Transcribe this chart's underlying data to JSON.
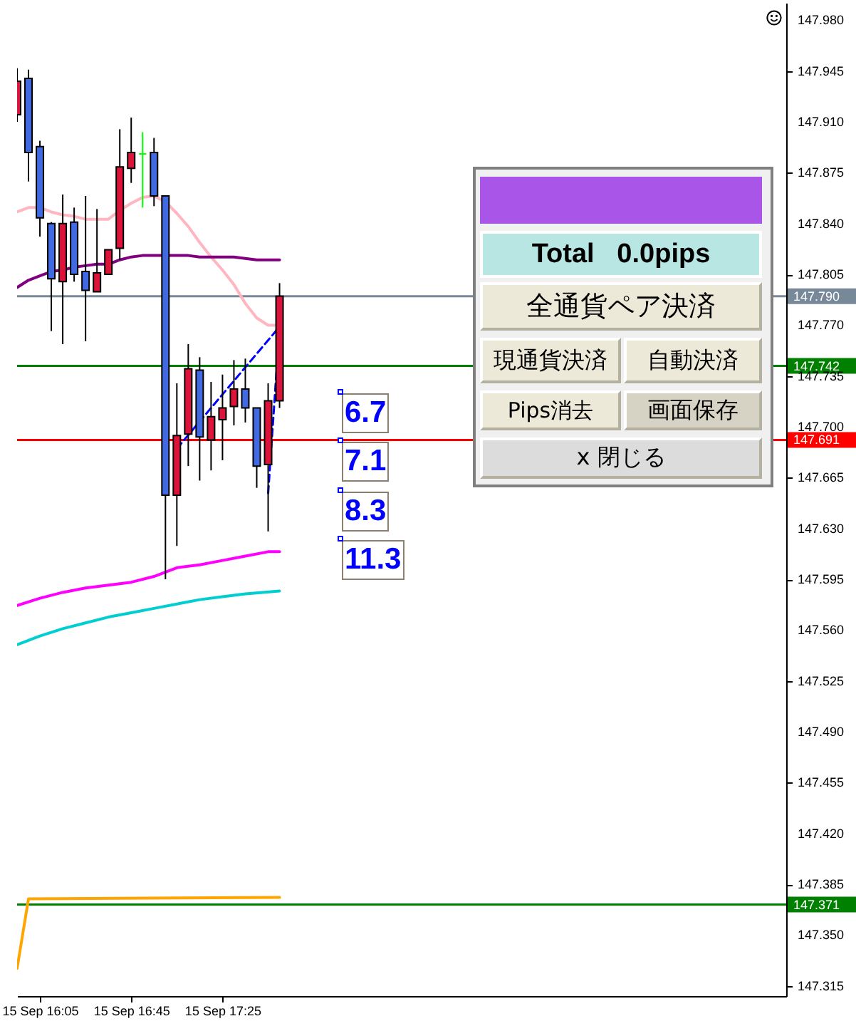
{
  "chart_data": {
    "type": "candlestick",
    "x": [
      "--09-15T15:55",
      "--09-15T16:00",
      "--09-15T16:05",
      "--09-15T16:10",
      "--09-15T16:15",
      "--09-15T16:20",
      "--09-15T16:25",
      "--09-15T16:30",
      "--09-15T16:35",
      "--09-15T16:40",
      "--09-15T16:45",
      "--09-15T16:50",
      "--09-15T16:55",
      "--09-15T17:00",
      "--09-15T17:05",
      "--09-15T17:10",
      "--09-15T17:15",
      "--09-15T17:20",
      "--09-15T17:25",
      "--09-15T17:30",
      "--09-15T17:35",
      "--09-15T17:40",
      "--09-15T17:45",
      "--09-15T17:50"
    ],
    "ohlc": [
      [
        147.915,
        147.947,
        147.91,
        147.938
      ],
      [
        147.94,
        147.946,
        147.869,
        147.889
      ],
      [
        147.893,
        147.897,
        147.831,
        147.844
      ],
      [
        147.84,
        147.841,
        147.766,
        147.802
      ],
      [
        147.8,
        147.86,
        147.757,
        147.84
      ],
      [
        147.841,
        147.851,
        147.8,
        147.805
      ],
      [
        147.807,
        147.859,
        147.759,
        147.794
      ],
      [
        147.793,
        147.85,
        147.793,
        147.806
      ],
      [
        147.805,
        147.822,
        147.805,
        147.822
      ],
      [
        147.823,
        147.905,
        147.815,
        147.879
      ],
      [
        147.878,
        147.913,
        147.868,
        147.889
      ],
      [
        147.888,
        147.903,
        147.851,
        147.888
      ],
      [
        147.889,
        147.899,
        147.852,
        147.859
      ],
      [
        147.859,
        147.859,
        147.595,
        147.653
      ],
      [
        147.653,
        147.73,
        147.618,
        147.694
      ],
      [
        147.695,
        147.757,
        147.673,
        147.74
      ],
      [
        147.739,
        147.748,
        147.663,
        147.693
      ],
      [
        147.691,
        147.731,
        147.67,
        147.707
      ],
      [
        147.705,
        147.736,
        147.677,
        147.713
      ],
      [
        147.714,
        147.746,
        147.701,
        147.726
      ],
      [
        147.726,
        147.747,
        147.703,
        147.713
      ],
      [
        147.713,
        147.713,
        147.658,
        147.673
      ],
      [
        147.674,
        147.73,
        147.628,
        147.718
      ],
      [
        147.718,
        147.799,
        147.713,
        147.79
      ]
    ],
    "colors": [
      "#dc143c",
      "#4169e1",
      "#4169e1",
      "#4169e1",
      "#dc143c",
      "#4169e1",
      "#4169e1",
      "#dc143c",
      "#dc143c",
      "#dc143c",
      "#dc143c",
      "#00ff00",
      "#4169e1",
      "#4169e1",
      "#dc143c",
      "#dc143c",
      "#4169e1",
      "#dc143c",
      "#dc143c",
      "#dc143c",
      "#4169e1",
      "#4169e1",
      "#dc143c",
      "#dc143c"
    ],
    "series": [
      {
        "type": "line",
        "color": "#ffb6c1",
        "x": [
          "--09-15T15:55",
          "--09-15T16:00",
          "--09-15T16:05",
          "--09-15T16:10",
          "--09-15T16:15",
          "--09-15T16:20",
          "--09-15T16:25",
          "--09-15T16:30",
          "--09-15T16:35",
          "--09-15T16:40",
          "--09-15T16:45",
          "--09-15T16:50",
          "--09-15T16:55",
          "--09-15T17:00",
          "--09-15T17:05",
          "--09-15T17:10",
          "--09-15T17:15",
          "--09-15T17:20",
          "--09-15T17:25",
          "--09-15T17:30",
          "--09-15T17:35",
          "--09-15T17:40",
          "--09-15T17:45",
          "--09-15T17:50"
        ],
        "values": [
          147.848,
          147.851,
          147.851,
          147.848,
          147.846,
          147.845,
          147.843,
          147.843,
          147.843,
          147.849,
          147.854,
          147.858,
          147.859,
          147.855,
          147.847,
          147.838,
          147.827,
          147.817,
          147.808,
          147.798,
          147.785,
          147.775,
          147.77,
          147.77
        ]
      },
      {
        "type": "line",
        "color": "#800080",
        "x": [
          "--09-15T15:55",
          "--09-15T16:00",
          "--09-15T16:05",
          "--09-15T16:10",
          "--09-15T16:15",
          "--09-15T16:20",
          "--09-15T16:25",
          "--09-15T16:30",
          "--09-15T16:35",
          "--09-15T16:40",
          "--09-15T16:45",
          "--09-15T16:50",
          "--09-15T16:55",
          "--09-15T17:00",
          "--09-15T17:05",
          "--09-15T17:10",
          "--09-15T17:15",
          "--09-15T17:20",
          "--09-15T17:25",
          "--09-15T17:30",
          "--09-15T17:35",
          "--09-15T17:40",
          "--09-15T17:45",
          "--09-15T17:50"
        ],
        "values": [
          147.796,
          147.801,
          147.804,
          147.807,
          147.808,
          147.81,
          147.811,
          147.812,
          147.812,
          147.815,
          147.817,
          147.818,
          147.818,
          147.818,
          147.818,
          147.818,
          147.817,
          147.817,
          147.817,
          147.817,
          147.816,
          147.815,
          147.815,
          147.815
        ]
      },
      {
        "type": "line",
        "color": "#ff00ff",
        "x": [
          "--09-15T15:55",
          "--09-15T16:05",
          "--09-15T16:15",
          "--09-15T16:25",
          "--09-15T16:35",
          "--09-15T16:45",
          "--09-15T16:55",
          "--09-15T17:05",
          "--09-15T17:15",
          "--09-15T17:25",
          "--09-15T17:35",
          "--09-15T17:45",
          "--09-15T17:50"
        ],
        "values": [
          147.577,
          147.582,
          147.586,
          147.589,
          147.591,
          147.593,
          147.597,
          147.603,
          147.605,
          147.608,
          147.611,
          147.614,
          147.614
        ]
      },
      {
        "type": "line",
        "color": "#00ced1",
        "x": [
          "--09-15T15:55",
          "--09-15T16:05",
          "--09-15T16:15",
          "--09-15T16:25",
          "--09-15T16:35",
          "--09-15T16:45",
          "--09-15T16:55",
          "--09-15T17:05",
          "--09-15T17:15",
          "--09-15T17:25",
          "--09-15T17:35",
          "--09-15T17:50"
        ],
        "values": [
          147.55,
          147.556,
          147.561,
          147.565,
          147.569,
          147.572,
          147.575,
          147.578,
          147.581,
          147.583,
          147.585,
          147.587
        ]
      },
      {
        "type": "line",
        "color": "#ffa500",
        "x": [
          "--09-15T15:55",
          "--09-15T16:00",
          "--09-15T17:50"
        ],
        "values": [
          147.327,
          147.375,
          147.376
        ]
      },
      {
        "type": "line",
        "color": "#0000ff",
        "line_style": "dashed",
        "x": [
          "--09-15T17:05",
          "--09-15T17:50",
          "--09-15T17:45"
        ],
        "values": [
          147.685,
          147.769,
          147.654
        ]
      }
    ],
    "xlim": [
      "--09-15T15:55",
      "--09-15T21:32"
    ],
    "xticks": [
      {
        "value": "--09-15T16:05",
        "label": "15 Sep 16:05"
      },
      {
        "value": "--09-15T16:45",
        "label": "15 Sep 16:45"
      },
      {
        "value": "--09-15T17:25",
        "label": "15 Sep 17:25"
      }
    ],
    "ylim": [
      147.308,
      147.992
    ],
    "yticks": [
      {
        "value": 147.98,
        "label": "147.980"
      },
      147.945,
      {
        "value": 147.91,
        "label": "147.910"
      },
      147.875,
      {
        "value": 147.84,
        "label": "147.840"
      },
      147.805,
      {
        "value": 147.77,
        "label": "147.770"
      },
      147.735,
      {
        "value": 147.7,
        "label": "147.700"
      },
      147.665,
      {
        "value": 147.63,
        "label": "147.630"
      },
      147.595,
      {
        "value": 147.56,
        "label": "147.560"
      },
      147.525,
      {
        "value": 147.49,
        "label": "147.490"
      },
      147.455,
      {
        "value": 147.42,
        "label": "147.420"
      },
      147.385,
      {
        "value": 147.35,
        "label": "147.350"
      },
      147.315
    ],
    "ref_lines": [
      {
        "axis": "y",
        "value": 147.79,
        "label": "147.790",
        "color": "#778899"
      },
      {
        "axis": "y",
        "value": 147.742,
        "label": "147.742",
        "color": "#008000"
      },
      {
        "axis": "y",
        "value": 147.691,
        "label": "147.691",
        "color": "#ff0000"
      },
      {
        "axis": "y",
        "value": 147.371,
        "label": "147.371",
        "color": "#008000"
      }
    ],
    "annotations": [
      "6.7",
      "7.1",
      "8.3",
      "11.3",
      "Total   0.0pips",
      "全通貨ペア決済",
      "現通貨決済",
      "自動決済",
      "Pips消去",
      "画面保存",
      "x 閉じる"
    ],
    "grid": false
  }
}
